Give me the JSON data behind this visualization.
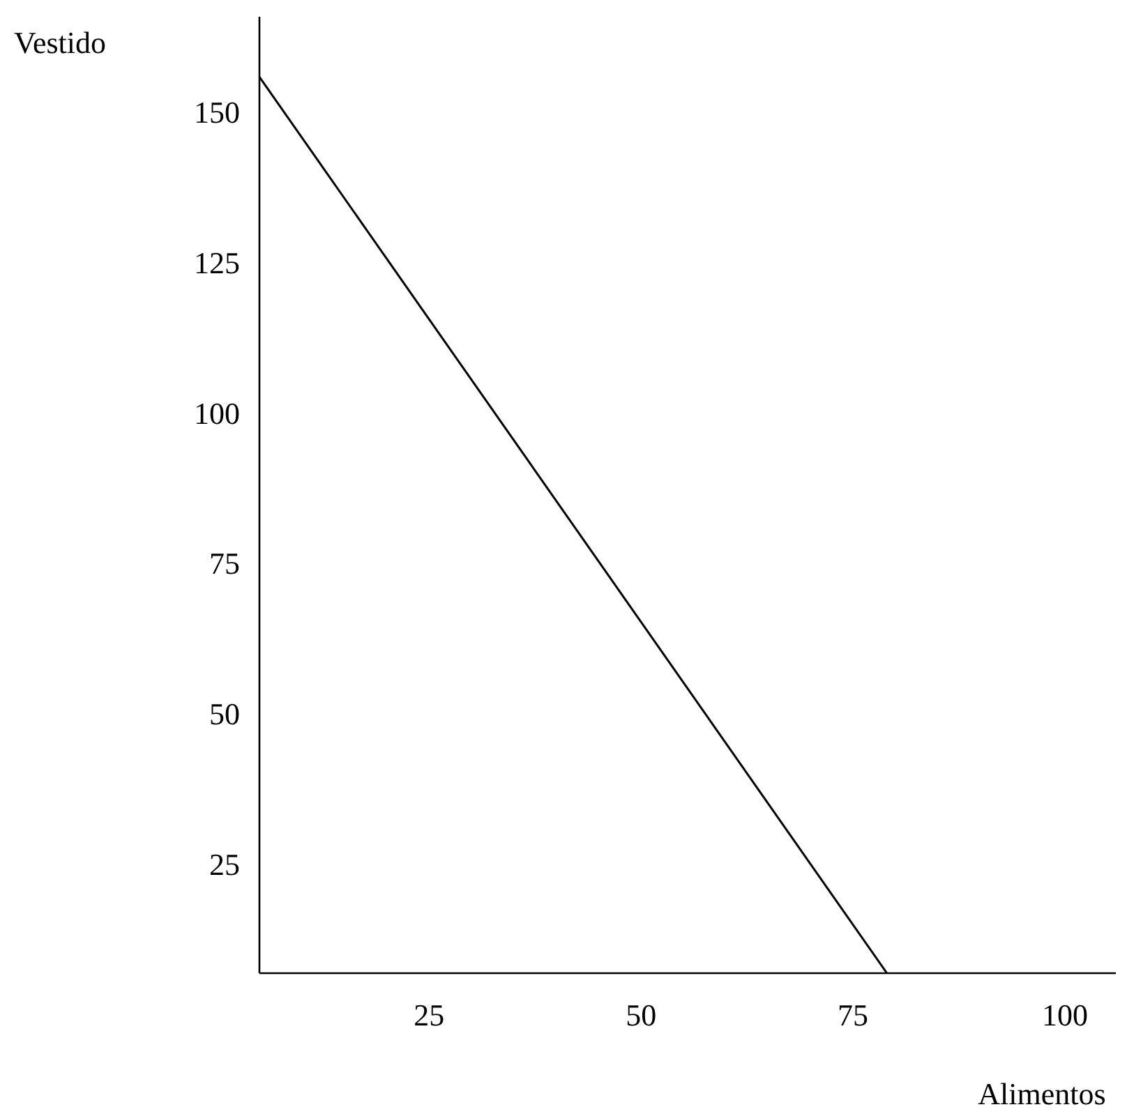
{
  "chart_data": {
    "type": "line",
    "xlabel": "Alimentos",
    "ylabel": "Vestido",
    "x": [
      5,
      79
    ],
    "series": [
      {
        "color": "#000000",
        "values": [
          156,
          7
        ]
      }
    ],
    "xlim": [
      5,
      106
    ],
    "ylim": [
      7,
      166
    ],
    "xticks": [
      25,
      50,
      75,
      100
    ],
    "yticks": [
      25,
      50,
      75,
      100,
      125,
      150
    ],
    "grid": false,
    "marker": "none",
    "line_style": "solid"
  }
}
